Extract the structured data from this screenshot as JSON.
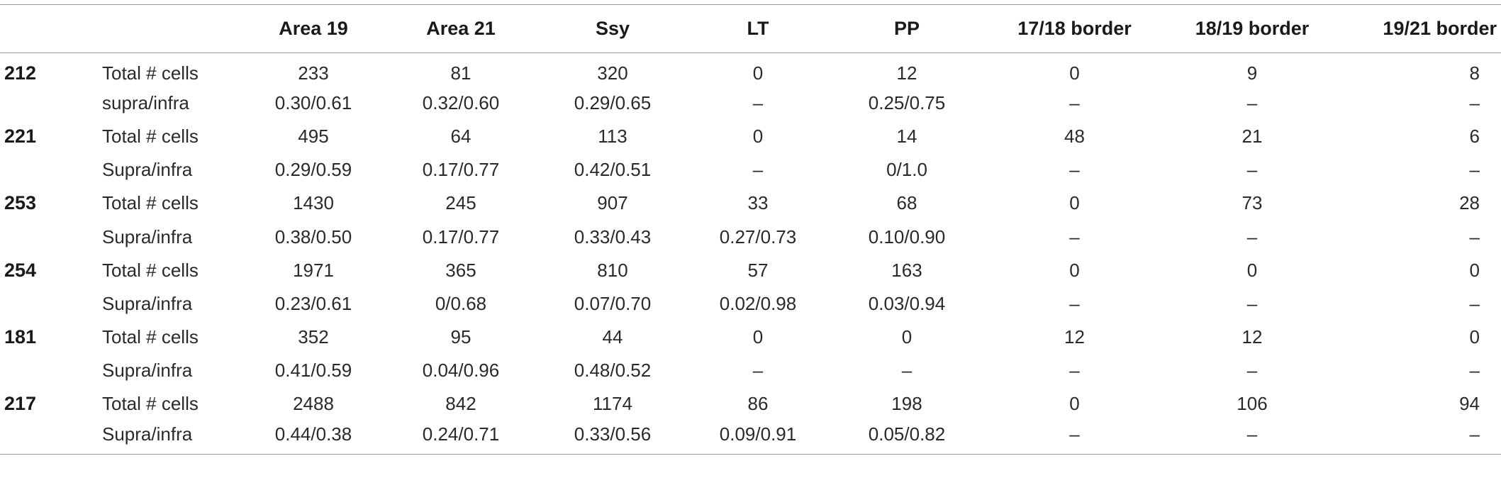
{
  "table": {
    "headers": [
      "",
      "",
      "Area 19",
      "Area 21",
      "Ssy",
      "LT",
      "PP",
      "17/18 border",
      "18/19 border",
      "19/21 border"
    ],
    "rows": [
      {
        "case": "212",
        "measure": "Total # cells",
        "values": [
          "233",
          "81",
          "320",
          "0",
          "12",
          "0",
          "9",
          "8"
        ]
      },
      {
        "case": "",
        "measure": "supra/infra",
        "values": [
          "0.30/0.61",
          "0.32/0.60",
          "0.29/0.65",
          "–",
          "0.25/0.75",
          "–",
          "–",
          "–"
        ]
      },
      {
        "case": "221",
        "measure": "Total # cells",
        "values": [
          "495",
          "64",
          "113",
          "0",
          "14",
          "48",
          "21",
          "6"
        ]
      },
      {
        "case": "",
        "measure": "Supra/infra",
        "values": [
          "0.29/0.59",
          "0.17/0.77",
          "0.42/0.51",
          "–",
          "0/1.0",
          "–",
          "–",
          "–"
        ]
      },
      {
        "case": "253",
        "measure": "Total # cells",
        "values": [
          "1430",
          "245",
          "907",
          "33",
          "68",
          "0",
          "73",
          "28"
        ]
      },
      {
        "case": "",
        "measure": "Supra/infra",
        "values": [
          "0.38/0.50",
          "0.17/0.77",
          "0.33/0.43",
          "0.27/0.73",
          "0.10/0.90",
          "–",
          "–",
          "–"
        ]
      },
      {
        "case": "254",
        "measure": "Total # cells",
        "values": [
          "1971",
          "365",
          "810",
          "57",
          "163",
          "0",
          "0",
          "0"
        ]
      },
      {
        "case": "",
        "measure": "Supra/infra",
        "values": [
          "0.23/0.61",
          "0/0.68",
          "0.07/0.70",
          "0.02/0.98",
          "0.03/0.94",
          "–",
          "–",
          "–"
        ]
      },
      {
        "case": "181",
        "measure": "Total # cells",
        "values": [
          "352",
          "95",
          "44",
          "0",
          "0",
          "12",
          "12",
          "0"
        ]
      },
      {
        "case": "",
        "measure": "Supra/infra",
        "values": [
          "0.41/0.59",
          "0.04/0.96",
          "0.48/0.52",
          "–",
          "–",
          "–",
          "–",
          "–"
        ]
      },
      {
        "case": "217",
        "measure": "Total # cells",
        "values": [
          "2488",
          "842",
          "1174",
          "86",
          "198",
          "0",
          "106",
          "94"
        ]
      },
      {
        "case": "",
        "measure": "Supra/infra",
        "values": [
          "0.44/0.38",
          "0.24/0.71",
          "0.33/0.56",
          "0.09/0.91",
          "0.05/0.82",
          "–",
          "–",
          "–"
        ]
      }
    ]
  }
}
